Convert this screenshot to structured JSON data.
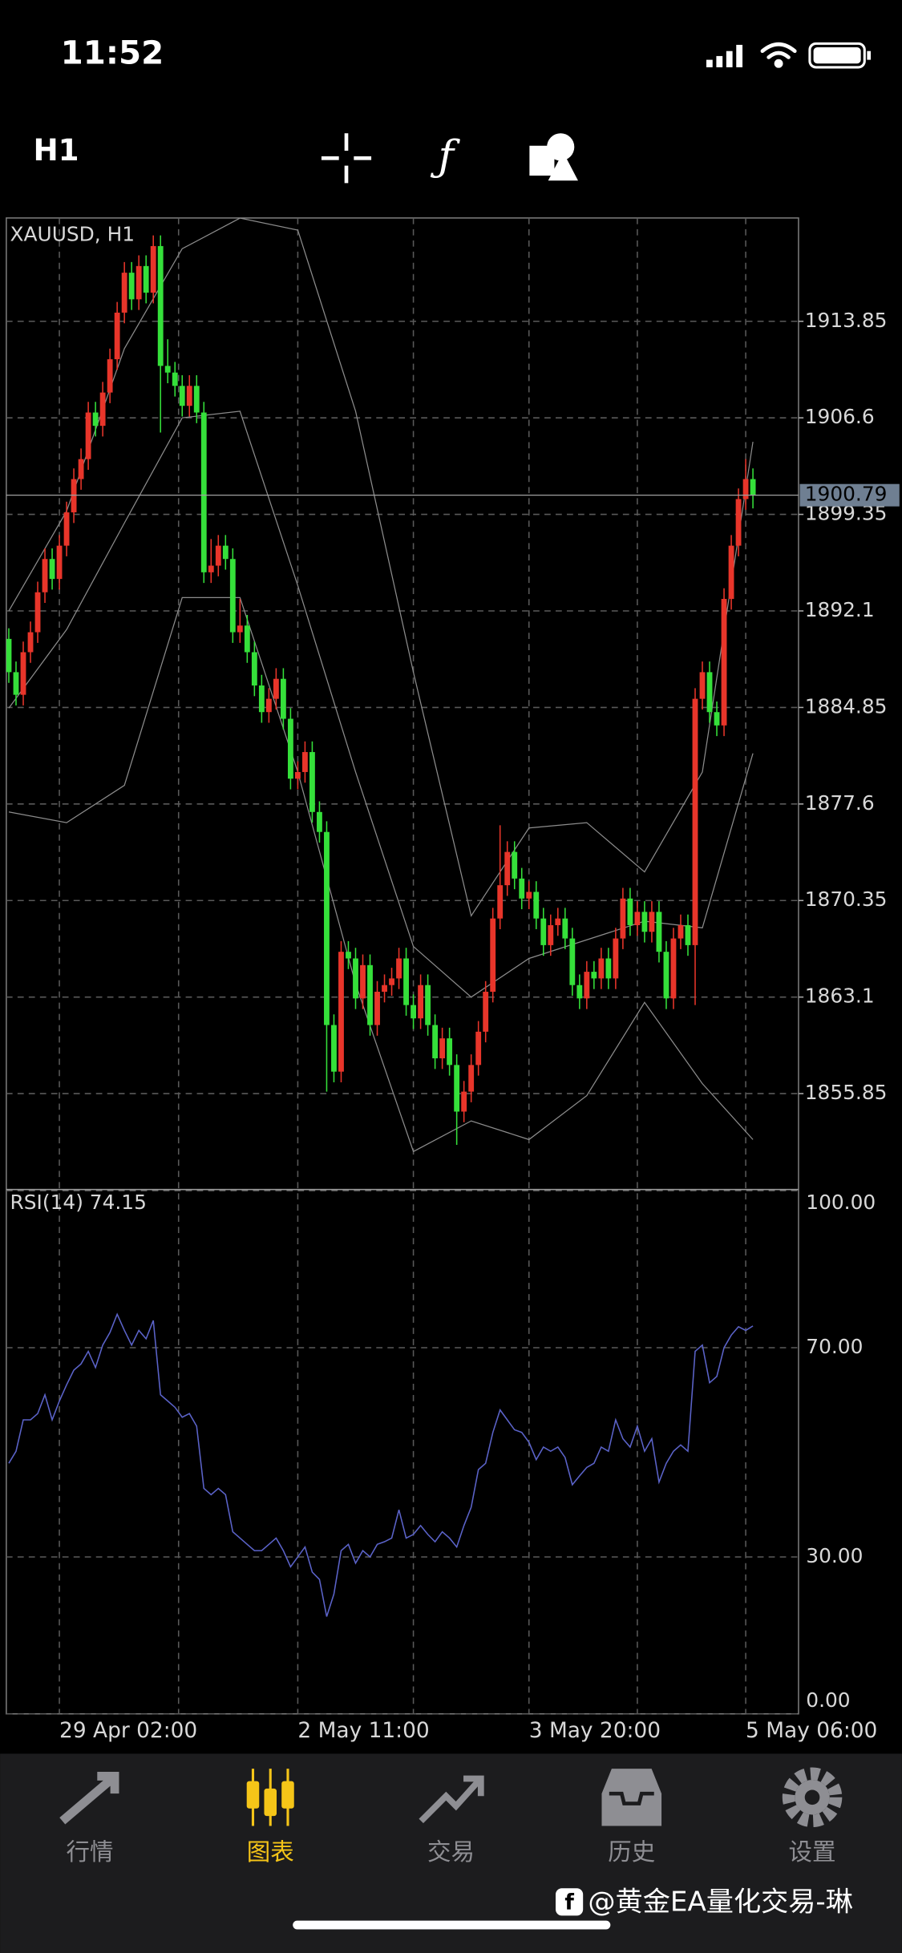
{
  "status_bar": {
    "time": "11:52"
  },
  "toolbar": {
    "timeframe": "H1"
  },
  "chart_data": {
    "type": "candlestick",
    "title": "XAUUSD, H1",
    "grid": true,
    "categories": [
      null,
      null,
      null,
      null,
      null,
      null,
      null,
      "29 Apr 02:00",
      null,
      null,
      null,
      null,
      null,
      null,
      null,
      null,
      null,
      null,
      null,
      null,
      null,
      null,
      null,
      null,
      null,
      null,
      null,
      null,
      null,
      null,
      null,
      null,
      null,
      null,
      null,
      null,
      null,
      null,
      null,
      null,
      "2 May 11:00",
      null,
      null,
      null,
      null,
      null,
      null,
      null,
      null,
      null,
      null,
      null,
      null,
      null,
      null,
      null,
      null,
      null,
      null,
      null,
      null,
      null,
      null,
      null,
      null,
      null,
      null,
      null,
      null,
      null,
      null,
      null,
      "3 May 20:00",
      null,
      null,
      null,
      null,
      null,
      null,
      null,
      null,
      null,
      null,
      null,
      null,
      null,
      null,
      null,
      null,
      null,
      null,
      null,
      null,
      null,
      null,
      null,
      null,
      null,
      null,
      null,
      null,
      null,
      "5 May 06:00"
    ],
    "ylim": [
      1848.65,
      1921.61
    ],
    "yticks": [
      1913.85,
      1906.6,
      1899.35,
      1892.1,
      1884.85,
      1877.6,
      1870.35,
      1863.1,
      1855.85
    ],
    "current_price": 1900.79,
    "series": [
      {
        "up_color": "#e8352a",
        "down_color": "#35e03a",
        "values": [
          [
            1890.0,
            1890.8,
            1886.7,
            1887.5
          ],
          [
            1887.5,
            1888.3,
            1885.0,
            1885.8
          ],
          [
            1885.8,
            1889.8,
            1885.0,
            1889.0
          ],
          [
            1889.0,
            1891.3,
            1888.2,
            1890.5
          ],
          [
            1890.5,
            1894.3,
            1889.7,
            1893.5
          ],
          [
            1893.5,
            1896.8,
            1892.7,
            1896.0
          ],
          [
            1896.0,
            1896.8,
            1893.7,
            1894.5
          ],
          [
            1894.5,
            1897.8,
            1893.7,
            1897.0
          ],
          [
            1897.0,
            1900.3,
            1896.2,
            1899.5
          ],
          [
            1899.5,
            1902.8,
            1898.7,
            1902.0
          ],
          [
            1902.0,
            1904.3,
            1901.2,
            1903.5
          ],
          [
            1903.5,
            1907.8,
            1902.7,
            1907.0
          ],
          [
            1907.0,
            1907.8,
            1905.2,
            1906.0
          ],
          [
            1906.0,
            1909.3,
            1905.2,
            1908.5
          ],
          [
            1908.5,
            1911.8,
            1907.7,
            1911.0
          ],
          [
            1911.0,
            1915.3,
            1910.2,
            1914.5
          ],
          [
            1914.5,
            1918.3,
            1913.7,
            1917.5
          ],
          [
            1917.5,
            1918.3,
            1914.7,
            1915.5
          ],
          [
            1915.5,
            1918.8,
            1914.7,
            1918.0
          ],
          [
            1918.0,
            1918.8,
            1915.2,
            1916.0
          ],
          [
            1916.0,
            1920.3,
            1915.2,
            1919.5
          ],
          [
            1919.5,
            1920.3,
            1905.5,
            1910.5
          ],
          [
            1910.5,
            1912.5,
            1909.2,
            1910.0
          ],
          [
            1910.0,
            1910.8,
            1908.2,
            1909.0
          ],
          [
            1909.0,
            1909.8,
            1906.7,
            1907.5
          ],
          [
            1907.5,
            1909.8,
            1906.7,
            1909.0
          ],
          [
            1909.0,
            1909.8,
            1906.2,
            1907.0
          ],
          [
            1907.0,
            1907.8,
            1894.2,
            1895.0
          ],
          [
            1895.0,
            1897.5,
            1894.2,
            1895.5
          ],
          [
            1895.5,
            1897.8,
            1894.7,
            1897.0
          ],
          [
            1897.0,
            1897.8,
            1895.2,
            1896.0
          ],
          [
            1896.0,
            1896.8,
            1889.7,
            1890.5
          ],
          [
            1890.5,
            1893.0,
            1889.7,
            1891.0
          ],
          [
            1891.0,
            1891.8,
            1888.2,
            1889.0
          ],
          [
            1889.0,
            1889.8,
            1885.7,
            1886.5
          ],
          [
            1886.5,
            1887.3,
            1883.7,
            1884.5
          ],
          [
            1884.5,
            1886.3,
            1883.7,
            1885.5
          ],
          [
            1885.5,
            1887.8,
            1884.7,
            1887.0
          ],
          [
            1887.0,
            1887.8,
            1883.2,
            1884.0
          ],
          [
            1884.0,
            1884.8,
            1878.7,
            1879.5
          ],
          [
            1879.5,
            1880.8,
            1878.7,
            1880.0
          ],
          [
            1880.0,
            1882.3,
            1879.2,
            1881.5
          ],
          [
            1881.5,
            1882.3,
            1876.2,
            1877.0
          ],
          [
            1877.0,
            1877.8,
            1874.7,
            1875.5
          ],
          [
            1875.5,
            1876.3,
            1856.0,
            1861.0
          ],
          [
            1861.0,
            1861.8,
            1856.7,
            1857.5
          ],
          [
            1857.5,
            1867.3,
            1856.7,
            1866.5
          ],
          [
            1866.5,
            1867.3,
            1865.2,
            1866.0
          ],
          [
            1866.0,
            1866.8,
            1862.2,
            1863.0
          ],
          [
            1863.0,
            1866.3,
            1862.2,
            1865.5
          ],
          [
            1865.5,
            1866.3,
            1860.2,
            1861.0
          ],
          [
            1861.0,
            1864.3,
            1860.2,
            1863.5
          ],
          [
            1863.5,
            1864.8,
            1862.7,
            1864.0
          ],
          [
            1864.0,
            1865.3,
            1863.2,
            1864.5
          ],
          [
            1864.5,
            1866.8,
            1863.7,
            1866.0
          ],
          [
            1866.0,
            1866.8,
            1861.7,
            1862.5
          ],
          [
            1862.5,
            1863.3,
            1860.7,
            1861.5
          ],
          [
            1861.5,
            1864.8,
            1860.7,
            1864.0
          ],
          [
            1864.0,
            1864.8,
            1860.2,
            1861.0
          ],
          [
            1861.0,
            1861.8,
            1857.7,
            1858.5
          ],
          [
            1858.5,
            1860.8,
            1857.7,
            1860.0
          ],
          [
            1860.0,
            1860.8,
            1857.2,
            1858.0
          ],
          [
            1858.0,
            1858.8,
            1852.0,
            1854.5
          ],
          [
            1854.5,
            1856.8,
            1853.7,
            1856.0
          ],
          [
            1856.0,
            1858.8,
            1855.2,
            1858.0
          ],
          [
            1858.0,
            1861.3,
            1857.2,
            1860.5
          ],
          [
            1860.5,
            1864.3,
            1859.7,
            1863.5
          ],
          [
            1863.5,
            1869.8,
            1862.7,
            1869.0
          ],
          [
            1869.0,
            1876.0,
            1868.2,
            1871.5
          ],
          [
            1871.5,
            1874.8,
            1870.7,
            1874.0
          ],
          [
            1874.0,
            1874.8,
            1871.2,
            1872.0
          ],
          [
            1872.0,
            1872.8,
            1869.7,
            1870.5
          ],
          [
            1870.5,
            1871.8,
            1869.7,
            1871.0
          ],
          [
            1871.0,
            1871.8,
            1868.2,
            1869.0
          ],
          [
            1869.0,
            1869.8,
            1866.2,
            1867.0
          ],
          [
            1867.0,
            1869.3,
            1866.2,
            1868.5
          ],
          [
            1868.5,
            1869.8,
            1867.7,
            1869.0
          ],
          [
            1869.0,
            1869.8,
            1866.7,
            1867.5
          ],
          [
            1867.5,
            1868.3,
            1863.2,
            1864.0
          ],
          [
            1864.0,
            1864.8,
            1862.2,
            1863.0
          ],
          [
            1863.0,
            1865.8,
            1862.2,
            1865.0
          ],
          [
            1865.0,
            1865.8,
            1863.7,
            1864.5
          ],
          [
            1864.5,
            1866.8,
            1863.7,
            1866.0
          ],
          [
            1866.0,
            1866.8,
            1863.7,
            1864.5
          ],
          [
            1864.5,
            1868.3,
            1863.7,
            1867.5
          ],
          [
            1867.5,
            1871.3,
            1866.7,
            1870.5
          ],
          [
            1870.5,
            1871.3,
            1867.7,
            1868.5
          ],
          [
            1868.5,
            1870.3,
            1867.7,
            1869.5
          ],
          [
            1869.5,
            1870.3,
            1867.2,
            1868.0
          ],
          [
            1868.0,
            1870.3,
            1867.2,
            1869.5
          ],
          [
            1869.5,
            1870.3,
            1865.7,
            1866.5
          ],
          [
            1866.5,
            1867.3,
            1862.2,
            1863.0
          ],
          [
            1863.0,
            1868.3,
            1862.2,
            1867.5
          ],
          [
            1867.5,
            1869.3,
            1866.7,
            1868.5
          ],
          [
            1868.5,
            1869.3,
            1866.2,
            1867.0
          ],
          [
            1867.0,
            1886.3,
            1862.5,
            1885.5
          ],
          [
            1885.5,
            1888.3,
            1884.7,
            1887.5
          ],
          [
            1887.5,
            1888.3,
            1883.7,
            1884.5
          ],
          [
            1884.5,
            1885.3,
            1882.7,
            1883.5
          ],
          [
            1883.5,
            1893.8,
            1882.7,
            1893.0
          ],
          [
            1893.0,
            1897.8,
            1892.2,
            1897.0
          ],
          [
            1897.0,
            1901.3,
            1896.2,
            1900.5
          ],
          [
            1900.5,
            1903.5,
            1899.7,
            1902.0
          ],
          [
            1902.0,
            1902.8,
            1899.8,
            1900.8
          ]
        ]
      }
    ],
    "band_color": "#8c8c8c",
    "band_x": [
      0,
      8,
      16,
      24,
      32,
      40,
      48,
      56,
      64,
      72,
      80,
      88,
      96,
      103
    ],
    "bands": [
      {
        "values": [
          1892.1,
          1899.6,
          1911.8,
          1919.3,
          1921.6,
          1920.7,
          1907.1,
          1887.5,
          1869.2,
          1875.8,
          1876.2,
          1872.5,
          1880.0,
          1904.8
        ]
      },
      {
        "values": [
          1884.8,
          1890.7,
          1898.7,
          1906.6,
          1907.1,
          1894.0,
          1880.0,
          1866.9,
          1863.1,
          1866.0,
          1867.4,
          1868.8,
          1868.3,
          1881.4
        ]
      },
      {
        "values": [
          1877.0,
          1876.2,
          1879.0,
          1893.1,
          1893.1,
          1880.0,
          1864.1,
          1851.5,
          1853.8,
          1852.4,
          1855.7,
          1862.7,
          1856.6,
          1852.4
        ]
      }
    ],
    "rsi": {
      "title": "RSI(14) 74.15",
      "color": "#5b63c9",
      "ylim": [
        0,
        100
      ],
      "yticks": [
        {
          "value": 100,
          "label": "100.00"
        },
        {
          "value": 70,
          "label": "70.00"
        },
        {
          "value": 30,
          "label": "30.00"
        },
        {
          "value": 0,
          "label": "0.00"
        }
      ],
      "values": [
        47.9,
        50.2,
        56.2,
        56.2,
        57.4,
        61.0,
        56.2,
        59.8,
        62.9,
        65.7,
        66.9,
        69.3,
        66.2,
        70.5,
        72.9,
        76.4,
        73.3,
        70.5,
        73.3,
        71.7,
        75.2,
        61.0,
        59.8,
        58.6,
        56.7,
        57.4,
        55.0,
        43.1,
        41.9,
        43.1,
        41.9,
        34.8,
        33.6,
        32.4,
        31.2,
        31.2,
        32.4,
        33.6,
        31.2,
        28.1,
        30.0,
        31.9,
        27.1,
        25.7,
        18.6,
        22.9,
        31.2,
        32.4,
        28.8,
        31.2,
        30.0,
        32.4,
        32.9,
        33.6,
        39.0,
        33.6,
        34.3,
        36.0,
        34.3,
        32.9,
        34.8,
        33.6,
        31.9,
        36.0,
        39.5,
        46.7,
        47.9,
        53.8,
        58.1,
        56.2,
        54.3,
        53.8,
        51.9,
        48.6,
        51.0,
        50.2,
        51.0,
        49.0,
        43.8,
        45.5,
        47.1,
        47.9,
        51.0,
        50.2,
        56.2,
        52.6,
        51.0,
        55.0,
        50.2,
        52.6,
        44.3,
        47.9,
        50.2,
        51.4,
        50.2,
        69.3,
        70.5,
        63.3,
        64.5,
        70.0,
        72.4,
        74.0,
        73.3,
        74.15
      ]
    }
  },
  "tab_bar": {
    "active_color": "#f5c518",
    "tabs": [
      "行情",
      "图表",
      "交易",
      "历史",
      "设置"
    ],
    "active": 1
  },
  "watermark": "@黄金EA量化交易-琳"
}
